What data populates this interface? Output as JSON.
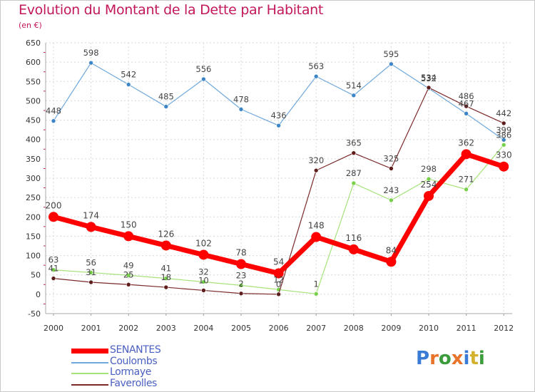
{
  "header": {
    "title": "Evolution du Montant de la Dette par Habitant",
    "subtitle": "(en €)"
  },
  "logo": {
    "text": "Proxiti",
    "letter_colors": [
      "#3a7bd5",
      "#e8732b",
      "#3a9c3a",
      "#e8732b",
      "#3a7bd5",
      "#d3b12c",
      "#3a9c3a"
    ]
  },
  "chart_data": {
    "type": "line",
    "title": "Evolution du Montant de la Dette par Habitant",
    "subtitle": "(en €)",
    "xlabel": "",
    "ylabel": "",
    "x": [
      "2000",
      "2001",
      "2002",
      "2003",
      "2004",
      "2005",
      "2006",
      "2007",
      "2008",
      "2009",
      "2010",
      "2011",
      "2012"
    ],
    "ylim": [
      -50,
      650
    ],
    "yticks": [
      -50,
      0,
      50,
      100,
      150,
      200,
      250,
      300,
      350,
      400,
      450,
      500,
      550,
      600,
      650
    ],
    "ytick_labels": [
      "-50",
      "0",
      "50",
      "100",
      "150",
      "200",
      "250",
      "300",
      "350",
      "400",
      "450",
      "500",
      "550",
      "600",
      "650"
    ],
    "grid": true,
    "legend_position": "bottom-left",
    "series": [
      {
        "name": "SENANTES",
        "color": "#ff0000",
        "width": 7,
        "marker": 7,
        "values": [
          200,
          174,
          150,
          126,
          102,
          78,
          54,
          148,
          116,
          84,
          254,
          362,
          330
        ],
        "labels": [
          "200",
          "174",
          "150",
          "126",
          "102",
          "78",
          "54",
          "148",
          "116",
          "84",
          "254",
          "362",
          "330"
        ]
      },
      {
        "name": "Coulombs",
        "color": "#6fa8dc",
        "marker_color": "#3d85c6",
        "width": 1.2,
        "marker": 3,
        "values": [
          448,
          598,
          542,
          485,
          556,
          478,
          436,
          563,
          514,
          595,
          532,
          467,
          399
        ],
        "labels": [
          "448",
          "598",
          "542",
          "485",
          "556",
          "478",
          "436",
          "563",
          "514",
          "595",
          "532",
          "467",
          "399"
        ]
      },
      {
        "name": "Lormaye",
        "color": "#a6e37a",
        "marker_color": "#77d14a",
        "width": 1.2,
        "marker": 3,
        "values": [
          63,
          56,
          49,
          41,
          32,
          23,
          12,
          1,
          287,
          243,
          298,
          271,
          386
        ],
        "labels": [
          "63",
          "56",
          "49",
          "41",
          "32",
          "23",
          "12",
          "1",
          "287",
          "243",
          "298",
          "271",
          "386"
        ]
      },
      {
        "name": "Faverolles",
        "color": "#7b2a2a",
        "marker_color": "#5e1d1d",
        "width": 1.2,
        "marker": 3,
        "values": [
          41,
          31,
          25,
          18,
          10,
          2,
          0,
          320,
          365,
          325,
          534,
          486,
          442
        ],
        "labels": [
          "41",
          "31",
          "25",
          "18",
          "10",
          "2",
          "0",
          "320",
          "365",
          "325",
          "534",
          "486",
          "442"
        ]
      }
    ]
  }
}
